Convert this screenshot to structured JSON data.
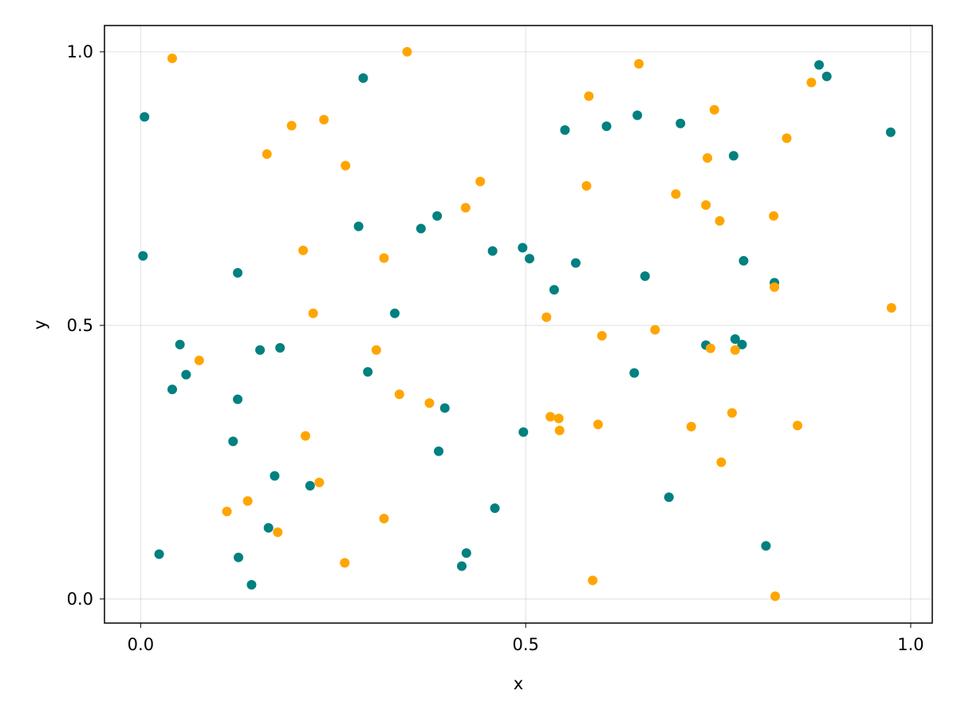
{
  "chart_data": {
    "type": "scatter",
    "title": "",
    "xlabel": "x",
    "ylabel": "y",
    "xlim": [
      -0.047,
      1.028
    ],
    "ylim": [
      -0.044,
      1.048
    ],
    "xticks": [
      0.0,
      0.5,
      1.0
    ],
    "xtick_labels": [
      "0.0",
      "0.5",
      "1.0"
    ],
    "yticks": [
      0.0,
      0.5,
      1.0
    ],
    "ytick_labels": [
      "0.0",
      "0.5",
      "1.0"
    ],
    "grid": true,
    "colors": [
      "#008080",
      "#FFA500"
    ],
    "series": [
      {
        "points": [
          [
            0.005,
            0.881
          ],
          [
            0.003,
            0.627
          ],
          [
            0.024,
            0.082
          ],
          [
            0.041,
            0.383
          ],
          [
            0.051,
            0.465
          ],
          [
            0.059,
            0.41
          ],
          [
            0.12,
            0.288
          ],
          [
            0.126,
            0.365
          ],
          [
            0.126,
            0.596
          ],
          [
            0.127,
            0.076
          ],
          [
            0.144,
            0.026
          ],
          [
            0.155,
            0.455
          ],
          [
            0.166,
            0.13
          ],
          [
            0.174,
            0.225
          ],
          [
            0.181,
            0.459
          ],
          [
            0.22,
            0.207
          ],
          [
            0.283,
            0.681
          ],
          [
            0.289,
            0.952
          ],
          [
            0.295,
            0.415
          ],
          [
            0.33,
            0.522
          ],
          [
            0.364,
            0.677
          ],
          [
            0.385,
            0.7
          ],
          [
            0.387,
            0.27
          ],
          [
            0.395,
            0.349
          ],
          [
            0.417,
            0.06
          ],
          [
            0.423,
            0.084
          ],
          [
            0.457,
            0.636
          ],
          [
            0.46,
            0.166
          ],
          [
            0.496,
            0.642
          ],
          [
            0.497,
            0.305
          ],
          [
            0.505,
            0.622
          ],
          [
            0.537,
            0.565
          ],
          [
            0.551,
            0.857
          ],
          [
            0.565,
            0.614
          ],
          [
            0.605,
            0.864
          ],
          [
            0.641,
            0.413
          ],
          [
            0.645,
            0.884
          ],
          [
            0.655,
            0.59
          ],
          [
            0.686,
            0.186
          ],
          [
            0.701,
            0.869
          ],
          [
            0.734,
            0.464
          ],
          [
            0.77,
            0.81
          ],
          [
            0.772,
            0.475
          ],
          [
            0.781,
            0.465
          ],
          [
            0.783,
            0.618
          ],
          [
            0.812,
            0.097
          ],
          [
            0.823,
            0.578
          ],
          [
            0.881,
            0.976
          ],
          [
            0.891,
            0.955
          ],
          [
            0.974,
            0.853
          ]
        ]
      },
      {
        "points": [
          [
            0.041,
            0.988
          ],
          [
            0.076,
            0.436
          ],
          [
            0.112,
            0.16
          ],
          [
            0.139,
            0.179
          ],
          [
            0.164,
            0.813
          ],
          [
            0.178,
            0.122
          ],
          [
            0.196,
            0.865
          ],
          [
            0.211,
            0.637
          ],
          [
            0.214,
            0.298
          ],
          [
            0.224,
            0.522
          ],
          [
            0.232,
            0.213
          ],
          [
            0.238,
            0.876
          ],
          [
            0.265,
            0.066
          ],
          [
            0.266,
            0.792
          ],
          [
            0.306,
            0.455
          ],
          [
            0.316,
            0.623
          ],
          [
            0.316,
            0.147
          ],
          [
            0.336,
            0.374
          ],
          [
            0.346,
            1.0
          ],
          [
            0.375,
            0.358
          ],
          [
            0.422,
            0.715
          ],
          [
            0.441,
            0.763
          ],
          [
            0.527,
            0.515
          ],
          [
            0.532,
            0.333
          ],
          [
            0.543,
            0.33
          ],
          [
            0.544,
            0.308
          ],
          [
            0.579,
            0.755
          ],
          [
            0.582,
            0.919
          ],
          [
            0.587,
            0.034
          ],
          [
            0.594,
            0.319
          ],
          [
            0.599,
            0.481
          ],
          [
            0.647,
            0.978
          ],
          [
            0.668,
            0.492
          ],
          [
            0.695,
            0.74
          ],
          [
            0.715,
            0.315
          ],
          [
            0.734,
            0.72
          ],
          [
            0.736,
            0.806
          ],
          [
            0.74,
            0.458
          ],
          [
            0.745,
            0.894
          ],
          [
            0.752,
            0.691
          ],
          [
            0.754,
            0.25
          ],
          [
            0.768,
            0.34
          ],
          [
            0.772,
            0.455
          ],
          [
            0.822,
            0.7
          ],
          [
            0.823,
            0.57
          ],
          [
            0.824,
            0.005
          ],
          [
            0.839,
            0.842
          ],
          [
            0.853,
            0.317
          ],
          [
            0.871,
            0.944
          ],
          [
            0.975,
            0.532
          ]
        ]
      }
    ]
  }
}
